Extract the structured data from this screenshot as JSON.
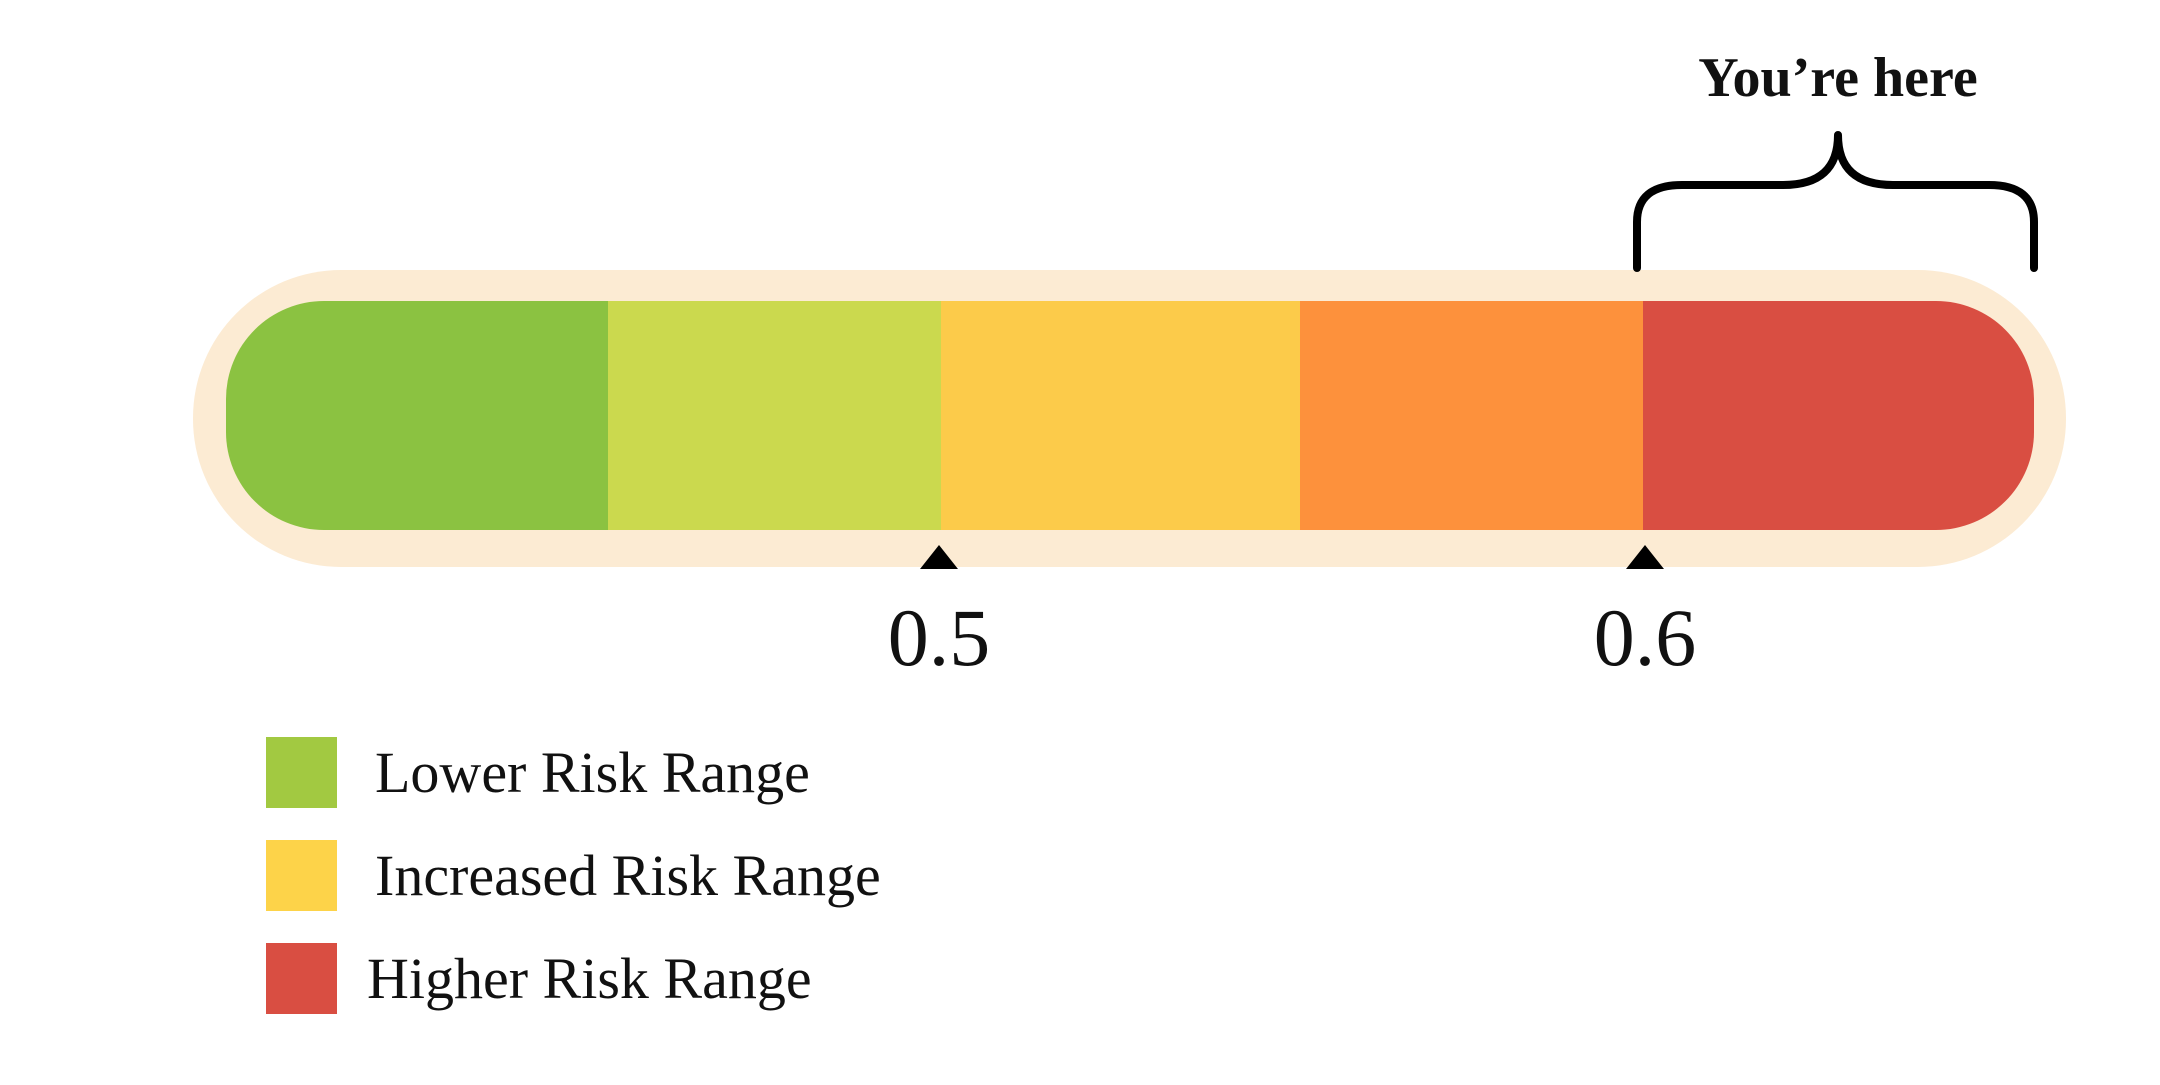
{
  "chart_data": {
    "type": "bar",
    "segments": [
      {
        "color": "#8bc241"
      },
      {
        "color": "#cbd94e"
      },
      {
        "color": "#fccb4a"
      },
      {
        "color": "#fd913c"
      },
      {
        "color": "#d94e42"
      }
    ],
    "threshold_labels": [
      "0.5",
      "0.6"
    ],
    "indicator": {
      "label": "You’re here",
      "segment_index": 4
    }
  },
  "colors": {
    "halo": "#fcebd3",
    "text": "#111111",
    "marker": "#000000"
  },
  "legend": {
    "items": [
      {
        "label": "Lower Risk Range",
        "color": "#a2c941"
      },
      {
        "label": "Increased Risk Range",
        "color": "#fdd349"
      },
      {
        "label": "Higher Risk Range",
        "color": "#d94e42"
      }
    ]
  }
}
